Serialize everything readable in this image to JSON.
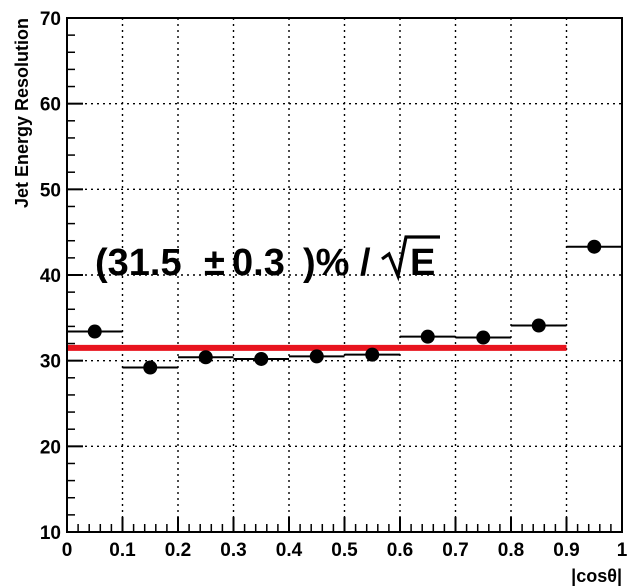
{
  "chart_data": {
    "type": "scatter",
    "title": "",
    "xlabel": "|cosθ|",
    "ylabel": "Jet Energy Resolution",
    "xlim": [
      0,
      1
    ],
    "ylim": [
      10,
      70
    ],
    "grid": true,
    "x_ticks": [
      0,
      0.1,
      0.2,
      0.3,
      0.4,
      0.5,
      0.6,
      0.7,
      0.8,
      0.9,
      1
    ],
    "x_tick_labels": [
      "0",
      "0.1",
      "0.2",
      "0.3",
      "0.4",
      "0.5",
      "0.6",
      "0.7",
      "0.8",
      "0.9",
      "1"
    ],
    "y_ticks": [
      10,
      20,
      30,
      40,
      50,
      60,
      70
    ],
    "y_tick_labels": [
      "10",
      "20",
      "30",
      "40",
      "50",
      "60",
      "70"
    ],
    "series": [
      {
        "color": "#000000",
        "marker": "circle",
        "x_error": 0.05,
        "points": [
          {
            "x": 0.05,
            "y": 33.4,
            "y_error": 0.6
          },
          {
            "x": 0.15,
            "y": 29.2,
            "y_error": 0.6
          },
          {
            "x": 0.25,
            "y": 30.4,
            "y_error": 0.6
          },
          {
            "x": 0.35,
            "y": 30.2,
            "y_error": 0.6
          },
          {
            "x": 0.45,
            "y": 30.5,
            "y_error": 0.6
          },
          {
            "x": 0.55,
            "y": 30.7,
            "y_error": 0.6
          },
          {
            "x": 0.65,
            "y": 32.8,
            "y_error": 0.6
          },
          {
            "x": 0.75,
            "y": 32.7,
            "y_error": 0.6
          },
          {
            "x": 0.85,
            "y": 34.1,
            "y_error": 0.6
          },
          {
            "x": 0.95,
            "y": 43.3,
            "y_error": 0.6
          }
        ]
      }
    ],
    "fit_line": {
      "color": "#e8141e",
      "y": 31.5,
      "x_range": [
        0,
        0.9
      ]
    },
    "annotation": {
      "label": "(31.5 ± 0.3 )% / √E",
      "part_open": "(31.5",
      "part_pm": "±",
      "part_err": "0.3",
      "part_unit": ")% /",
      "part_var": "E",
      "anchor_x": 0.06,
      "anchor_y": 39.5
    }
  }
}
